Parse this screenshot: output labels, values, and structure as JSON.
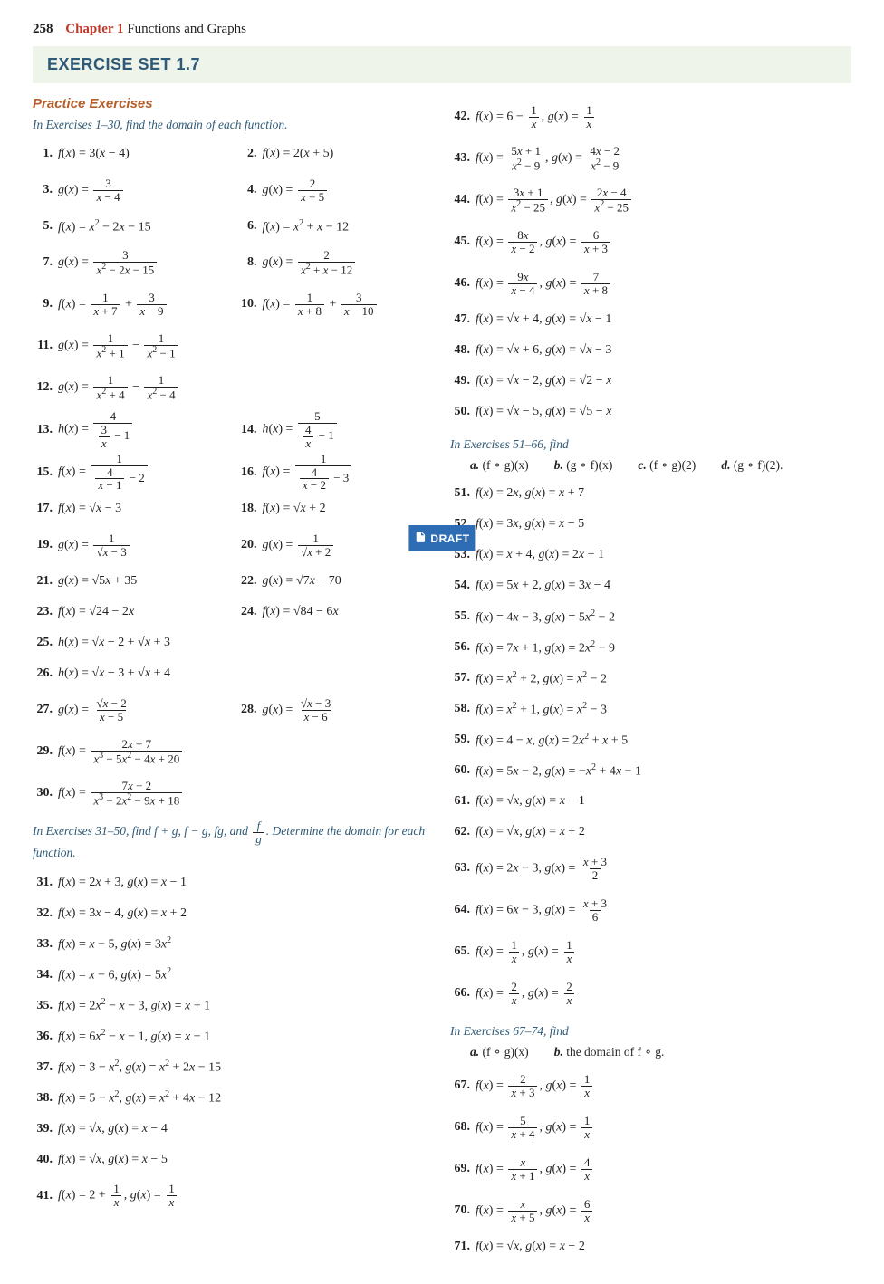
{
  "page": {
    "number": "258",
    "chapter": "Chapter 1",
    "chapterTitle": "Functions and Graphs"
  },
  "banner": "EXERCISE SET 1.7",
  "practiceHeading": "Practice Exercises",
  "instr1": "In Exercises 1–30, find the domain of each function.",
  "instr2html": "In Exercises 31–50, find f + g, f − g, fg, and <span class='frac'><span class='num'>f</span><span class='den'>g</span></span>. Determine the domain for each function.",
  "instr3": "In Exercises 51–66, find",
  "instr4": "In Exercises 67–74, find",
  "subA": "a.",
  "subAval": "(f ∘ g)(x)",
  "subB": "b.",
  "subBval": "(g ∘ f)(x)",
  "subC": "c.",
  "subCval": "(f ∘ g)(2)",
  "subD": "d.",
  "subDval": "(g ∘ f)(2).",
  "sub2A": "a.",
  "sub2Aval": "(f ∘ g)(x)",
  "sub2B": "b.",
  "sub2Bval": "the domain of f ∘ g.",
  "draft": "DRAFT",
  "row1": [
    {
      "n": "1.",
      "h": "<i>f</i>(<i>x</i>) = 3(<i>x</i> − 4)"
    },
    {
      "n": "2.",
      "h": "<i>f</i>(<i>x</i>) = 2(<i>x</i> + 5)"
    },
    {
      "n": "3.",
      "h": "<i>g</i>(<i>x</i>) = <span class='frac'><span class='num'>3</span><span class='den'><i>x</i> − 4</span></span>",
      "tall": true
    },
    {
      "n": "4.",
      "h": "<i>g</i>(<i>x</i>) = <span class='frac'><span class='num'>2</span><span class='den'><i>x</i> + 5</span></span>",
      "tall": true
    },
    {
      "n": "5.",
      "h": "<i>f</i>(<i>x</i>) = <i>x</i><sup>2</sup> − 2<i>x</i> − 15"
    },
    {
      "n": "6.",
      "h": "<i>f</i>(<i>x</i>) = <i>x</i><sup>2</sup> + <i>x</i> − 12"
    },
    {
      "n": "7.",
      "h": "<i>g</i>(<i>x</i>) = <span class='frac'><span class='num'>3</span><span class='den'><i>x</i><sup>2</sup> − 2<i>x</i> − 15</span></span>",
      "tall": true
    },
    {
      "n": "8.",
      "h": "<i>g</i>(<i>x</i>) = <span class='frac'><span class='num'>2</span><span class='den'><i>x</i><sup>2</sup> + <i>x</i> − 12</span></span>",
      "tall": true
    },
    {
      "n": "9.",
      "h": "<i>f</i>(<i>x</i>) = <span class='frac'><span class='num'>1</span><span class='den'><i>x</i> + 7</span></span> + <span class='frac'><span class='num'>3</span><span class='den'><i>x</i> − 9</span></span>",
      "tall": true
    },
    {
      "n": "10.",
      "h": "<i>f</i>(<i>x</i>) = <span class='frac'><span class='num'>1</span><span class='den'><i>x</i> + 8</span></span> + <span class='frac'><span class='num'>3</span><span class='den'><i>x</i> − 10</span></span>",
      "tall": true
    },
    {
      "n": "11.",
      "h": "<i>g</i>(<i>x</i>) = <span class='frac'><span class='num'>1</span><span class='den'><i>x</i><sup>2</sup> + 1</span></span> − <span class='frac'><span class='num'>1</span><span class='den'><i>x</i><sup>2</sup> − 1</span></span>",
      "tall": true,
      "span": 2
    },
    {
      "n": "12.",
      "h": "<i>g</i>(<i>x</i>) = <span class='frac'><span class='num'>1</span><span class='den'><i>x</i><sup>2</sup> + 4</span></span> − <span class='frac'><span class='num'>1</span><span class='den'><i>x</i><sup>2</sup> − 4</span></span>",
      "tall": true,
      "span": 2
    },
    {
      "n": "13.",
      "h": "<i>h</i>(<i>x</i>) = <span class='frac'><span class='num'>4</span><span class='den'><span class='frac'><span class='num'>3</span><span class='den'><i>x</i></span></span> − 1</span></span>",
      "tall": true
    },
    {
      "n": "14.",
      "h": "<i>h</i>(<i>x</i>) = <span class='frac'><span class='num'>5</span><span class='den'><span class='frac'><span class='num'>4</span><span class='den'><i>x</i></span></span> − 1</span></span>",
      "tall": true
    },
    {
      "n": "15.",
      "h": "<i>f</i>(<i>x</i>) = <span class='frac'><span class='num'>1</span><span class='den'><span class='frac'><span class='num'>4</span><span class='den'><i>x</i> − 1</span></span> − 2</span></span>",
      "tall": true
    },
    {
      "n": "16.",
      "h": "<i>f</i>(<i>x</i>) = <span class='frac'><span class='num'>1</span><span class='den'><span class='frac'><span class='num'>4</span><span class='den'><i>x</i> − 2</span></span> − 3</span></span>",
      "tall": true
    },
    {
      "n": "17.",
      "h": "<i>f</i>(<i>x</i>) = √<span class='rad'><i>x</i> − 3</span>"
    },
    {
      "n": "18.",
      "h": "<i>f</i>(<i>x</i>) = √<span class='rad'><i>x</i> + 2</span>"
    },
    {
      "n": "19.",
      "h": "<i>g</i>(<i>x</i>) = <span class='frac'><span class='num'>1</span><span class='den'>√<span class='rad'><i>x</i> − 3</span></span></span>",
      "tall": true
    },
    {
      "n": "20.",
      "h": "<i>g</i>(<i>x</i>) = <span class='frac'><span class='num'>1</span><span class='den'>√<span class='rad'><i>x</i> + 2</span></span></span>",
      "tall": true
    },
    {
      "n": "21.",
      "h": "<i>g</i>(<i>x</i>) = √<span class='rad'>5<i>x</i> + 35</span>"
    },
    {
      "n": "22.",
      "h": "<i>g</i>(<i>x</i>) = √<span class='rad'>7<i>x</i> − 70</span>"
    },
    {
      "n": "23.",
      "h": "<i>f</i>(<i>x</i>) = √<span class='rad'>24 − 2<i>x</i></span>"
    },
    {
      "n": "24.",
      "h": "<i>f</i>(<i>x</i>) = √<span class='rad'>84 − 6<i>x</i></span>"
    },
    {
      "n": "25.",
      "h": "<i>h</i>(<i>x</i>) = √<span class='rad'><i>x</i> − 2</span> + √<span class='rad'><i>x</i> + 3</span>",
      "span": 2
    },
    {
      "n": "26.",
      "h": "<i>h</i>(<i>x</i>) = √<span class='rad'><i>x</i> − 3</span> + √<span class='rad'><i>x</i> + 4</span>",
      "span": 2
    },
    {
      "n": "27.",
      "h": "<i>g</i>(<i>x</i>) = <span class='frac'><span class='num'>√<span class='rad'><i>x</i> − 2</span></span><span class='den'><i>x</i> − 5</span></span>",
      "tall": true
    },
    {
      "n": "28.",
      "h": "<i>g</i>(<i>x</i>) = <span class='frac'><span class='num'>√<span class='rad'><i>x</i> − 3</span></span><span class='den'><i>x</i> − 6</span></span>",
      "tall": true
    },
    {
      "n": "29.",
      "h": "<i>f</i>(<i>x</i>) = <span class='frac'><span class='num'>2<i>x</i> + 7</span><span class='den'><i>x</i><sup>3</sup> − 5<i>x</i><sup>2</sup> − 4<i>x</i> + 20</span></span>",
      "tall": true,
      "span": 2
    },
    {
      "n": "30.",
      "h": "<i>f</i>(<i>x</i>) = <span class='frac'><span class='num'>7<i>x</i> + 2</span><span class='den'><i>x</i><sup>3</sup> − 2<i>x</i><sup>2</sup> − 9<i>x</i> + 18</span></span>",
      "tall": true,
      "span": 2
    }
  ],
  "row2": [
    {
      "n": "31.",
      "h": "<i>f</i>(<i>x</i>) = 2<i>x</i> + 3, <i>g</i>(<i>x</i>) = <i>x</i> − 1"
    },
    {
      "n": "32.",
      "h": "<i>f</i>(<i>x</i>) = 3<i>x</i> − 4, <i>g</i>(<i>x</i>) = <i>x</i> + 2"
    },
    {
      "n": "33.",
      "h": "<i>f</i>(<i>x</i>) = <i>x</i> − 5, <i>g</i>(<i>x</i>) = 3<i>x</i><sup>2</sup>"
    },
    {
      "n": "34.",
      "h": "<i>f</i>(<i>x</i>) = <i>x</i> − 6, <i>g</i>(<i>x</i>) = 5<i>x</i><sup>2</sup>"
    },
    {
      "n": "35.",
      "h": "<i>f</i>(<i>x</i>) = 2<i>x</i><sup>2</sup> − <i>x</i> − 3, <i>g</i>(<i>x</i>) = <i>x</i> + 1"
    },
    {
      "n": "36.",
      "h": "<i>f</i>(<i>x</i>) = 6<i>x</i><sup>2</sup> − <i>x</i> − 1, <i>g</i>(<i>x</i>) = <i>x</i> − 1"
    },
    {
      "n": "37.",
      "h": "<i>f</i>(<i>x</i>) = 3 − <i>x</i><sup>2</sup>, <i>g</i>(<i>x</i>) = <i>x</i><sup>2</sup> + 2<i>x</i> − 15"
    },
    {
      "n": "38.",
      "h": "<i>f</i>(<i>x</i>) = 5 − <i>x</i><sup>2</sup>, <i>g</i>(<i>x</i>) = <i>x</i><sup>2</sup> + 4<i>x</i> − 12"
    },
    {
      "n": "39.",
      "h": "<i>f</i>(<i>x</i>) = √<span class='rad'><i>x</i></span>, <i>g</i>(<i>x</i>) = <i>x</i> − 4"
    },
    {
      "n": "40.",
      "h": "<i>f</i>(<i>x</i>) = √<span class='rad'><i>x</i></span>, <i>g</i>(<i>x</i>) = <i>x</i> − 5"
    },
    {
      "n": "41.",
      "h": "<i>f</i>(<i>x</i>) = 2 + <span class='frac'><span class='num'>1</span><span class='den'><i>x</i></span></span>, <i>g</i>(<i>x</i>) = <span class='frac'><span class='num'>1</span><span class='den'><i>x</i></span></span>",
      "tall": true
    }
  ],
  "row3": [
    {
      "n": "42.",
      "h": "<i>f</i>(<i>x</i>) = 6 − <span class='frac'><span class='num'>1</span><span class='den'><i>x</i></span></span>, <i>g</i>(<i>x</i>) = <span class='frac'><span class='num'>1</span><span class='den'><i>x</i></span></span>",
      "tall": true
    },
    {
      "n": "43.",
      "h": "<i>f</i>(<i>x</i>) = <span class='frac'><span class='num'>5<i>x</i> + 1</span><span class='den'><i>x</i><sup>2</sup> − 9</span></span>, <i>g</i>(<i>x</i>) = <span class='frac'><span class='num'>4<i>x</i> − 2</span><span class='den'><i>x</i><sup>2</sup> − 9</span></span>",
      "tall": true
    },
    {
      "n": "44.",
      "h": "<i>f</i>(<i>x</i>) = <span class='frac'><span class='num'>3<i>x</i> + 1</span><span class='den'><i>x</i><sup>2</sup> − 25</span></span>, <i>g</i>(<i>x</i>) = <span class='frac'><span class='num'>2<i>x</i> − 4</span><span class='den'><i>x</i><sup>2</sup> − 25</span></span>",
      "tall": true
    },
    {
      "n": "45.",
      "h": "<i>f</i>(<i>x</i>) = <span class='frac'><span class='num'>8<i>x</i></span><span class='den'><i>x</i> − 2</span></span>, <i>g</i>(<i>x</i>) = <span class='frac'><span class='num'>6</span><span class='den'><i>x</i> + 3</span></span>",
      "tall": true
    },
    {
      "n": "46.",
      "h": "<i>f</i>(<i>x</i>) = <span class='frac'><span class='num'>9<i>x</i></span><span class='den'><i>x</i> − 4</span></span>, <i>g</i>(<i>x</i>) = <span class='frac'><span class='num'>7</span><span class='den'><i>x</i> + 8</span></span>",
      "tall": true
    },
    {
      "n": "47.",
      "h": "<i>f</i>(<i>x</i>) = √<span class='rad'><i>x</i> + 4</span>, <i>g</i>(<i>x</i>) = √<span class='rad'><i>x</i> − 1</span>"
    },
    {
      "n": "48.",
      "h": "<i>f</i>(<i>x</i>) = √<span class='rad'><i>x</i> + 6</span>, <i>g</i>(<i>x</i>) = √<span class='rad'><i>x</i> − 3</span>"
    },
    {
      "n": "49.",
      "h": "<i>f</i>(<i>x</i>) = √<span class='rad'><i>x</i> − 2</span>, <i>g</i>(<i>x</i>) = √<span class='rad'>2 − <i>x</i></span>"
    },
    {
      "n": "50.",
      "h": "<i>f</i>(<i>x</i>) = √<span class='rad'><i>x</i> − 5</span>, <i>g</i>(<i>x</i>) = √<span class='rad'>5 − <i>x</i></span>"
    }
  ],
  "row4": [
    {
      "n": "51.",
      "h": "<i>f</i>(<i>x</i>) = 2<i>x</i>, <i>g</i>(<i>x</i>) = <i>x</i> + 7"
    },
    {
      "n": "52.",
      "h": "<i>f</i>(<i>x</i>) = 3<i>x</i>, <i>g</i>(<i>x</i>) = <i>x</i> − 5"
    },
    {
      "n": "53.",
      "h": "<i>f</i>(<i>x</i>) = <i>x</i> + 4, <i>g</i>(<i>x</i>) = 2<i>x</i> + 1"
    },
    {
      "n": "54.",
      "h": "<i>f</i>(<i>x</i>) = 5<i>x</i> + 2, <i>g</i>(<i>x</i>) = 3<i>x</i> − 4"
    },
    {
      "n": "55.",
      "h": "<i>f</i>(<i>x</i>) = 4<i>x</i> − 3, <i>g</i>(<i>x</i>) = 5<i>x</i><sup>2</sup> − 2"
    },
    {
      "n": "56.",
      "h": "<i>f</i>(<i>x</i>) = 7<i>x</i> + 1, <i>g</i>(<i>x</i>) = 2<i>x</i><sup>2</sup> − 9"
    },
    {
      "n": "57.",
      "h": "<i>f</i>(<i>x</i>) = <i>x</i><sup>2</sup> + 2, <i>g</i>(<i>x</i>) = <i>x</i><sup>2</sup> − 2"
    },
    {
      "n": "58.",
      "h": "<i>f</i>(<i>x</i>) = <i>x</i><sup>2</sup> + 1, <i>g</i>(<i>x</i>) = <i>x</i><sup>2</sup> − 3"
    },
    {
      "n": "59.",
      "h": "<i>f</i>(<i>x</i>) = 4 − <i>x</i>, <i>g</i>(<i>x</i>) = 2<i>x</i><sup>2</sup> + <i>x</i> + 5"
    },
    {
      "n": "60.",
      "h": "<i>f</i>(<i>x</i>) = 5<i>x</i> − 2, <i>g</i>(<i>x</i>) = −<i>x</i><sup>2</sup> + 4<i>x</i> − 1"
    },
    {
      "n": "61.",
      "h": "<i>f</i>(<i>x</i>) = √<span class='rad'><i>x</i></span>, <i>g</i>(<i>x</i>) = <i>x</i> − 1"
    },
    {
      "n": "62.",
      "h": "<i>f</i>(<i>x</i>) = √<span class='rad'><i>x</i></span>, <i>g</i>(<i>x</i>) = <i>x</i> + 2"
    },
    {
      "n": "63.",
      "h": "<i>f</i>(<i>x</i>) = 2<i>x</i> − 3, <i>g</i>(<i>x</i>) = <span class='frac'><span class='num'><i>x</i> + 3</span><span class='den'>2</span></span>",
      "tall": true
    },
    {
      "n": "64.",
      "h": "<i>f</i>(<i>x</i>) = 6<i>x</i> − 3, <i>g</i>(<i>x</i>) = <span class='frac'><span class='num'><i>x</i> + 3</span><span class='den'>6</span></span>",
      "tall": true
    },
    {
      "n": "65.",
      "h": "<i>f</i>(<i>x</i>) = <span class='frac'><span class='num'>1</span><span class='den'><i>x</i></span></span>, <i>g</i>(<i>x</i>) = <span class='frac'><span class='num'>1</span><span class='den'><i>x</i></span></span>",
      "tall": true
    },
    {
      "n": "66.",
      "h": "<i>f</i>(<i>x</i>) = <span class='frac'><span class='num'>2</span><span class='den'><i>x</i></span></span>, <i>g</i>(<i>x</i>) = <span class='frac'><span class='num'>2</span><span class='den'><i>x</i></span></span>",
      "tall": true
    }
  ],
  "row5": [
    {
      "n": "67.",
      "h": "<i>f</i>(<i>x</i>) = <span class='frac'><span class='num'>2</span><span class='den'><i>x</i> + 3</span></span>, <i>g</i>(<i>x</i>) = <span class='frac'><span class='num'>1</span><span class='den'><i>x</i></span></span>",
      "tall": true
    },
    {
      "n": "68.",
      "h": "<i>f</i>(<i>x</i>) = <span class='frac'><span class='num'>5</span><span class='den'><i>x</i> + 4</span></span>, <i>g</i>(<i>x</i>) = <span class='frac'><span class='num'>1</span><span class='den'><i>x</i></span></span>",
      "tall": true
    },
    {
      "n": "69.",
      "h": "<i>f</i>(<i>x</i>) = <span class='frac'><span class='num'><i>x</i></span><span class='den'><i>x</i> + 1</span></span>, <i>g</i>(<i>x</i>) = <span class='frac'><span class='num'>4</span><span class='den'><i>x</i></span></span>",
      "tall": true
    },
    {
      "n": "70.",
      "h": "<i>f</i>(<i>x</i>) = <span class='frac'><span class='num'><i>x</i></span><span class='den'><i>x</i> + 5</span></span>, <i>g</i>(<i>x</i>) = <span class='frac'><span class='num'>6</span><span class='den'><i>x</i></span></span>",
      "tall": true
    },
    {
      "n": "71.",
      "h": "<i>f</i>(<i>x</i>) = √<span class='rad'><i>x</i></span>, <i>g</i>(<i>x</i>) = <i>x</i> − 2"
    }
  ]
}
